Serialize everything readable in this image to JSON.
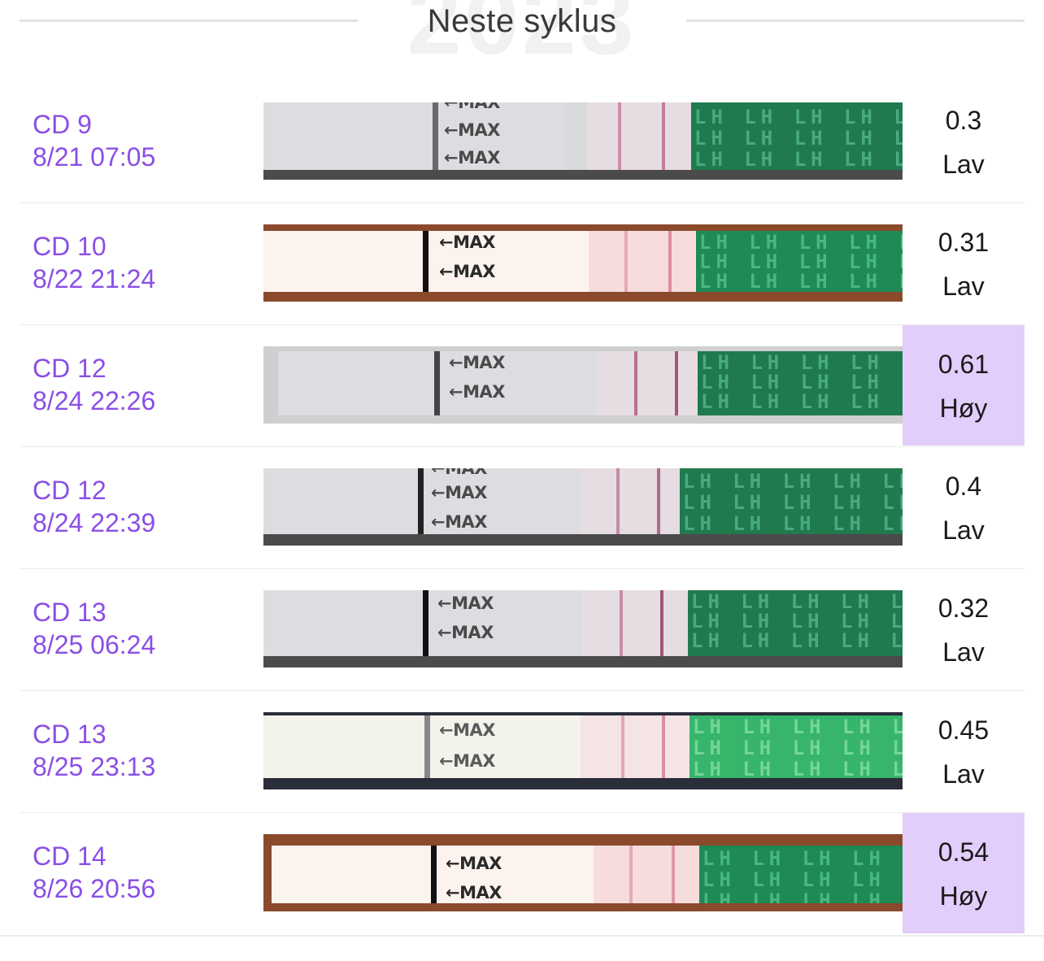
{
  "header": {
    "title": "Neste syklus",
    "watermark": "2023"
  },
  "strip": {
    "max_label": "←MAX",
    "lh_pattern": "LH LH LH LH LH LH"
  },
  "entries": [
    {
      "cycle_day": "CD 9",
      "datetime": "8/21 07:05",
      "value": "0.3",
      "level": "Lav"
    },
    {
      "cycle_day": "CD 10",
      "datetime": "8/22 21:24",
      "value": "0.31",
      "level": "Lav"
    },
    {
      "cycle_day": "CD 12",
      "datetime": "8/24 22:26",
      "value": "0.61",
      "level": "Høy"
    },
    {
      "cycle_day": "CD 12",
      "datetime": "8/24 22:39",
      "value": "0.4",
      "level": "Lav"
    },
    {
      "cycle_day": "CD 13",
      "datetime": "8/25 06:24",
      "value": "0.32",
      "level": "Lav"
    },
    {
      "cycle_day": "CD 13",
      "datetime": "8/25 23:13",
      "value": "0.45",
      "level": "Lav"
    },
    {
      "cycle_day": "CD 14",
      "datetime": "8/26 20:56",
      "value": "0.54",
      "level": "Høy"
    }
  ],
  "colors": {
    "accent_text": "#8a4fe6",
    "high_highlight": "#e3cdfa"
  }
}
